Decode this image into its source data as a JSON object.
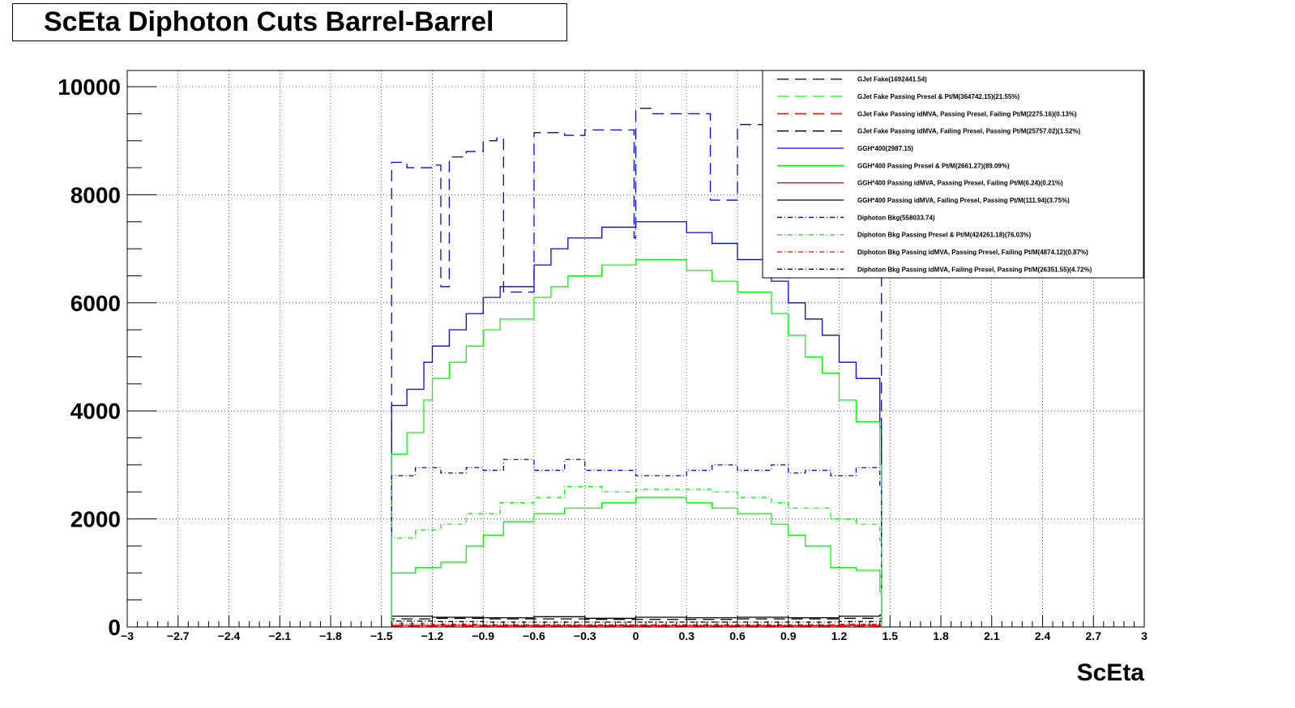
{
  "chart_data": {
    "type": "line",
    "title": "ScEta Diphoton Cuts Barrel-Barrel",
    "xlabel": "ScEta",
    "ylabel": "",
    "xlim": [
      -3,
      3
    ],
    "ylim": [
      0,
      10300
    ],
    "x_ticks": [
      "-3",
      "-2.7",
      "-2.4",
      "-2.1",
      "-1.8",
      "-1.5",
      "-1.2",
      "-0.9",
      "-0.6",
      "-0.3",
      "0",
      "0.3",
      "0.6",
      "0.9",
      "1.2",
      "1.5",
      "1.8",
      "2.1",
      "2.4",
      "2.7",
      "3"
    ],
    "y_ticks": [
      "0",
      "2000",
      "4000",
      "6000",
      "8000",
      "10000"
    ],
    "grid": true,
    "legend_position": "top-right",
    "series": [
      {
        "name": "GJet Fake(1692441.54)",
        "color": "#0000ff",
        "dash": "long-dash",
        "x": [
          -1.44,
          -1.35,
          -1.2,
          -1.15,
          -1.1,
          -1.0,
          -0.9,
          -0.82,
          -0.78,
          -0.6,
          -0.42,
          -0.3,
          -0.01,
          0.0,
          0.1,
          0.3,
          0.44,
          0.6,
          0.8,
          1.0,
          1.15,
          1.25,
          1.44
        ],
        "y": [
          8600,
          8500,
          8550,
          6300,
          8700,
          8800,
          9000,
          9050,
          6200,
          9150,
          9100,
          9200,
          7200,
          9600,
          9500,
          9500,
          7900,
          9300,
          9200,
          9200,
          9300,
          9300,
          8700
        ]
      },
      {
        "name": "GJet Fake Passing Presel & Pt/M(364742.15)(21.55%)",
        "color": "#00ff00",
        "dash": "long-dash",
        "x": [],
        "y": []
      },
      {
        "name": "GJet Fake Passing idMVA, Passing Presel, Failing Pt/M(2275.16)(0.13%)",
        "color": "#ff0000",
        "dash": "long-dash",
        "x": [
          -1.44,
          -1.2,
          -0.9,
          -0.6,
          -0.3,
          0.0,
          0.3,
          0.6,
          0.9,
          1.2,
          1.44
        ],
        "y": [
          20,
          20,
          15,
          15,
          15,
          15,
          15,
          15,
          15,
          20,
          20
        ]
      },
      {
        "name": "GJet Fake Passing idMVA, Failing Presel, Passing Pt/M(25757.02)(1.52%)",
        "color": "#000000",
        "dash": "long-dash",
        "x": [
          -1.44,
          -1.2,
          -0.9,
          -0.6,
          -0.3,
          0.0,
          0.3,
          0.6,
          0.9,
          1.2,
          1.44
        ],
        "y": [
          150,
          160,
          150,
          150,
          140,
          140,
          140,
          150,
          150,
          160,
          150
        ]
      },
      {
        "name": "GGH*400(2987.15)",
        "color": "#0000ff",
        "dash": "solid",
        "x": [
          -1.44,
          -1.35,
          -1.25,
          -1.2,
          -1.1,
          -1.0,
          -0.9,
          -0.8,
          -0.6,
          -0.5,
          -0.4,
          -0.2,
          0.0,
          0.2,
          0.3,
          0.45,
          0.6,
          0.8,
          0.9,
          1.0,
          1.1,
          1.2,
          1.3,
          1.44
        ],
        "y": [
          4100,
          4400,
          4900,
          5200,
          5500,
          5800,
          6100,
          6300,
          6700,
          7000,
          7200,
          7400,
          7500,
          7500,
          7300,
          7100,
          6800,
          6400,
          6000,
          5700,
          5400,
          4900,
          4600,
          3700
        ]
      },
      {
        "name": "GGH*400 Passing Presel & Pt/M(2661.27)(89.09%)",
        "color": "#00ff00",
        "dash": "solid",
        "x": [
          -1.44,
          -1.35,
          -1.25,
          -1.2,
          -1.1,
          -1.0,
          -0.9,
          -0.8,
          -0.6,
          -0.5,
          -0.4,
          -0.2,
          0.0,
          0.2,
          0.3,
          0.45,
          0.6,
          0.8,
          0.9,
          1.0,
          1.1,
          1.2,
          1.3,
          1.44
        ],
        "y": [
          3200,
          3600,
          4200,
          4600,
          4900,
          5200,
          5500,
          5700,
          6100,
          6300,
          6500,
          6700,
          6800,
          6800,
          6600,
          6400,
          6200,
          5800,
          5400,
          5000,
          4700,
          4200,
          3800,
          3000
        ]
      },
      {
        "name": "GGH*400 Passing idMVA, Passing Presel, Failing Pt/M(6.24)(0.21%)",
        "color": "#ff0000",
        "dash": "solid",
        "x": [
          -1.44,
          -1.2,
          -0.9,
          -0.6,
          -0.3,
          0.0,
          0.3,
          0.6,
          0.9,
          1.2,
          1.44
        ],
        "y": [
          30,
          30,
          25,
          25,
          25,
          25,
          25,
          25,
          25,
          30,
          30
        ]
      },
      {
        "name": "GGH*400 Passing idMVA, Failing Presel, Passing Pt/M(111.94)(3.75%)",
        "color": "#000000",
        "dash": "solid",
        "x": [
          -1.44,
          -1.2,
          -0.9,
          -0.6,
          -0.3,
          0.0,
          0.3,
          0.6,
          0.9,
          1.2,
          1.44
        ],
        "y": [
          200,
          180,
          170,
          190,
          160,
          180,
          170,
          180,
          170,
          200,
          220
        ]
      },
      {
        "name": "Diphoton Bkg(558033.74)",
        "color": "#0000ff",
        "dash": "dash-dot",
        "x": [
          -1.44,
          -1.3,
          -1.15,
          -1.0,
          -0.9,
          -0.78,
          -0.6,
          -0.42,
          -0.3,
          0.0,
          0.3,
          0.45,
          0.6,
          0.8,
          0.9,
          1.0,
          1.15,
          1.3,
          1.44
        ],
        "y": [
          2800,
          2950,
          2850,
          2950,
          2900,
          3100,
          2900,
          3100,
          2900,
          2800,
          2900,
          3000,
          2900,
          3000,
          2850,
          2900,
          2800,
          2950,
          2600
        ]
      },
      {
        "name": "Diphoton Bkg Passing Presel & Pt/M(424261.18)(76.03%)",
        "color": "#00ff00",
        "dash": "dash-dot",
        "x": [
          -1.44,
          -1.3,
          -1.15,
          -1.0,
          -0.8,
          -0.6,
          -0.42,
          -0.2,
          0.0,
          0.3,
          0.45,
          0.6,
          0.8,
          0.9,
          1.15,
          1.3,
          1.44
        ],
        "y": [
          1650,
          1800,
          1900,
          2100,
          2300,
          2400,
          2600,
          2500,
          2550,
          2550,
          2500,
          2400,
          2300,
          2200,
          2000,
          1900,
          1600
        ]
      },
      {
        "name": "Diphoton Bkg Passing idMVA, Passing Presel, Failing Pt/M(4874.12)(0.87%)",
        "color": "#ff0000",
        "dash": "dash-dot",
        "x": [
          -1.44,
          -1.2,
          -0.9,
          -0.6,
          -0.3,
          0.0,
          0.3,
          0.6,
          0.9,
          1.2,
          1.44
        ],
        "y": [
          60,
          50,
          40,
          40,
          40,
          40,
          40,
          40,
          40,
          50,
          60
        ]
      },
      {
        "name": "Diphoton Bkg Passing idMVA, Failing Presel, Passing Pt/M(26351.55)(4.72%)",
        "color": "#000000",
        "dash": "dash-dot",
        "x": [
          -1.44,
          -1.2,
          -0.9,
          -0.6,
          -0.3,
          0.0,
          0.3,
          0.6,
          0.9,
          1.2,
          1.44
        ],
        "y": [
          110,
          100,
          90,
          90,
          90,
          90,
          90,
          90,
          90,
          100,
          110
        ]
      }
    ],
    "extra_curves": [
      {
        "color": "#00ff00",
        "dash": "solid",
        "x": [
          -1.44,
          -1.3,
          -1.15,
          -1.0,
          -0.9,
          -0.78,
          -0.6,
          -0.42,
          -0.2,
          0.0,
          0.3,
          0.45,
          0.6,
          0.8,
          0.9,
          1.0,
          1.15,
          1.3,
          1.44
        ],
        "y": [
          1000,
          1100,
          1200,
          1500,
          1700,
          1950,
          2100,
          2200,
          2300,
          2400,
          2300,
          2200,
          2100,
          1900,
          1700,
          1500,
          1100,
          1050,
          650
        ]
      }
    ]
  }
}
